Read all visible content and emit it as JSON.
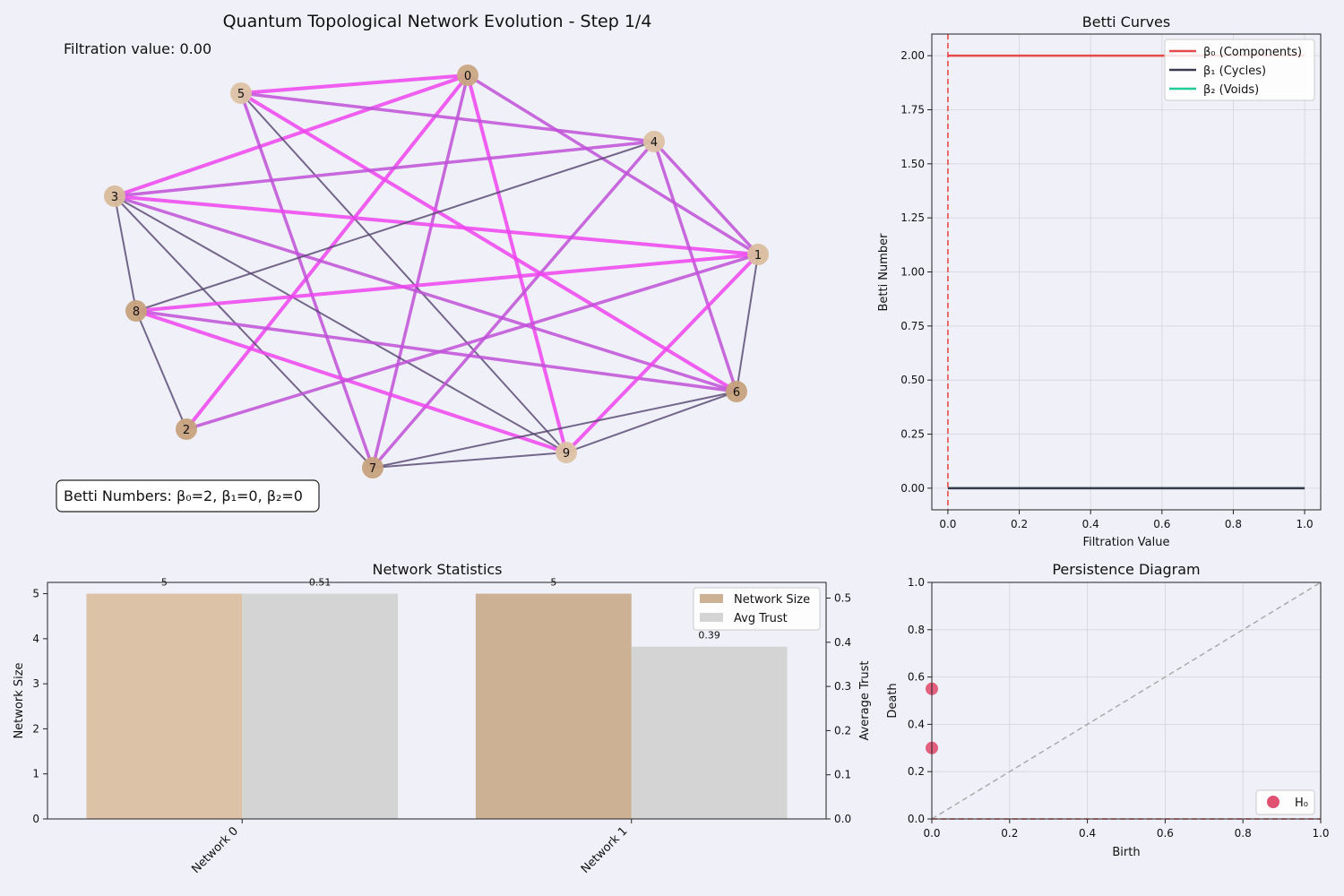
{
  "chart_data": [
    {
      "type": "network",
      "title": "Quantum Topological Network Evolution - Step 1/4",
      "filtration_text": "Filtration value: 0.00",
      "betti_text": "Betti Numbers: β₀=2, β₁=0, β₂=0",
      "nodes": [
        {
          "id": "0",
          "x": 0.522,
          "y": 0.084,
          "color": "#c9a783"
        },
        {
          "id": "1",
          "x": 0.846,
          "y": 0.284,
          "color": "#d9bd9e"
        },
        {
          "id": "2",
          "x": 0.208,
          "y": 0.479,
          "color": "#c6a27d"
        },
        {
          "id": "3",
          "x": 0.128,
          "y": 0.219,
          "color": "#d8bb9b"
        },
        {
          "id": "4",
          "x": 0.73,
          "y": 0.158,
          "color": "#dcc2a4"
        },
        {
          "id": "5",
          "x": 0.269,
          "y": 0.104,
          "color": "#dcc2a4"
        },
        {
          "id": "6",
          "x": 0.822,
          "y": 0.437,
          "color": "#c6a27d"
        },
        {
          "id": "7",
          "x": 0.416,
          "y": 0.522,
          "color": "#c6a27d"
        },
        {
          "id": "8",
          "x": 0.152,
          "y": 0.347,
          "color": "#c6a27d"
        },
        {
          "id": "9",
          "x": 0.632,
          "y": 0.505,
          "color": "#dcc2a4"
        }
      ],
      "edges": [
        {
          "s": "5",
          "t": "0",
          "kind": "m"
        },
        {
          "s": "3",
          "t": "0",
          "kind": "m"
        },
        {
          "s": "2",
          "t": "0",
          "kind": "m"
        },
        {
          "s": "0",
          "t": "9",
          "kind": "m"
        },
        {
          "s": "0",
          "t": "7",
          "kind": "p"
        },
        {
          "s": "0",
          "t": "1",
          "kind": "p"
        },
        {
          "s": "5",
          "t": "4",
          "kind": "p"
        },
        {
          "s": "5",
          "t": "6",
          "kind": "m"
        },
        {
          "s": "5",
          "t": "7",
          "kind": "p"
        },
        {
          "s": "5",
          "t": "9",
          "kind": "g"
        },
        {
          "s": "3",
          "t": "4",
          "kind": "p"
        },
        {
          "s": "3",
          "t": "1",
          "kind": "m"
        },
        {
          "s": "3",
          "t": "6",
          "kind": "p"
        },
        {
          "s": "3",
          "t": "8",
          "kind": "g"
        },
        {
          "s": "3",
          "t": "7",
          "kind": "g"
        },
        {
          "s": "3",
          "t": "9",
          "kind": "g"
        },
        {
          "s": "4",
          "t": "1",
          "kind": "p"
        },
        {
          "s": "4",
          "t": "6",
          "kind": "p"
        },
        {
          "s": "4",
          "t": "7",
          "kind": "p"
        },
        {
          "s": "4",
          "t": "8",
          "kind": "g"
        },
        {
          "s": "8",
          "t": "1",
          "kind": "m"
        },
        {
          "s": "8",
          "t": "6",
          "kind": "p"
        },
        {
          "s": "8",
          "t": "9",
          "kind": "m"
        },
        {
          "s": "8",
          "t": "2",
          "kind": "g"
        },
        {
          "s": "2",
          "t": "1",
          "kind": "p"
        },
        {
          "s": "1",
          "t": "9",
          "kind": "m"
        },
        {
          "s": "1",
          "t": "6",
          "kind": "g"
        },
        {
          "s": "7",
          "t": "9",
          "kind": "g"
        },
        {
          "s": "9",
          "t": "6",
          "kind": "g"
        },
        {
          "s": "7",
          "t": "6",
          "kind": "g"
        }
      ],
      "edge_colors": {
        "m": "#ee44ee",
        "p": "#c050d8",
        "g": "#54446e"
      }
    },
    {
      "type": "line",
      "title": "Betti Curves",
      "xlabel": "Filtration Value",
      "ylabel": "Betti Number",
      "xlim": [
        -0.045,
        1.045
      ],
      "ylim": [
        -0.1,
        2.1
      ],
      "xticks": [
        0.0,
        0.2,
        0.4,
        0.6,
        0.8,
        1.0
      ],
      "yticks": [
        0.0,
        0.25,
        0.5,
        0.75,
        1.0,
        1.25,
        1.5,
        1.75,
        2.0
      ],
      "grid": true,
      "legend": "top-right",
      "marker_x": 0.0,
      "series": [
        {
          "name": "β₀ (Components)",
          "color": "#e84a4a",
          "x": [
            0.0,
            1.0
          ],
          "y": [
            2,
            2
          ]
        },
        {
          "name": "β₁ (Cycles)",
          "color": "#3a3a4e",
          "x": [
            0.0,
            1.0
          ],
          "y": [
            0,
            0
          ]
        },
        {
          "name": "β₂ (Voids)",
          "color": "#22cc99",
          "x": [
            0.0,
            1.0
          ],
          "y": [
            0,
            0
          ]
        }
      ]
    },
    {
      "type": "bar",
      "title": "Network Statistics",
      "categories": [
        "Network 0",
        "Network 1"
      ],
      "ylabel": "Network Size",
      "y2label": "Average Trust",
      "ylim": [
        0,
        5.25
      ],
      "y2lim": [
        0,
        0.5355
      ],
      "yticks": [
        0,
        1,
        2,
        3,
        4,
        5
      ],
      "y2ticks": [
        0.0,
        0.1,
        0.2,
        0.3,
        0.4,
        0.5
      ],
      "legend": "top-right",
      "series": [
        {
          "name": "Network Size",
          "axis": "left",
          "values": [
            5,
            5
          ],
          "labels": [
            "5",
            "5"
          ],
          "colors": [
            "#dcc3a8",
            "#cdb194"
          ]
        },
        {
          "name": "Avg Trust",
          "axis": "right",
          "values": [
            0.51,
            0.39
          ],
          "labels": [
            "0.51",
            "0.39"
          ],
          "colors": [
            "#d4d4d4",
            "#d4d4d4"
          ]
        }
      ]
    },
    {
      "type": "scatter",
      "title": "Persistence Diagram",
      "xlabel": "Birth",
      "ylabel": "Death",
      "xlim": [
        0,
        1
      ],
      "ylim": [
        0,
        1
      ],
      "xticks": [
        0.0,
        0.2,
        0.4,
        0.6,
        0.8,
        1.0
      ],
      "yticks": [
        0.0,
        0.2,
        0.4,
        0.6,
        0.8,
        1.0
      ],
      "grid": true,
      "legend": "bottom-right",
      "diagonal": true,
      "series": [
        {
          "name": "H₀",
          "color": "#e05070",
          "points": [
            [
              0.0,
              0.55
            ],
            [
              0.0,
              0.3
            ]
          ]
        }
      ]
    }
  ]
}
